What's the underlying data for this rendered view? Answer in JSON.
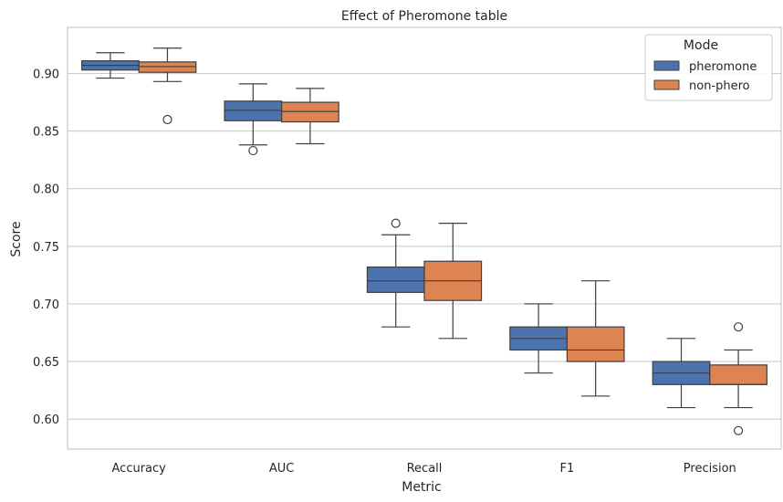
{
  "chart_data": {
    "type": "box",
    "title": "Effect of Pheromone table",
    "xlabel": "Metric",
    "ylabel": "Score",
    "categories": [
      "Accuracy",
      "AUC",
      "Recall",
      "F1",
      "Precision"
    ],
    "ylim": [
      0.574,
      0.94
    ],
    "yticks": [
      0.6,
      0.65,
      0.7,
      0.75,
      0.8,
      0.85,
      0.9
    ],
    "ytick_labels": [
      "0.60",
      "0.65",
      "0.70",
      "0.75",
      "0.80",
      "0.85",
      "0.90"
    ],
    "grid": true,
    "legend": {
      "title": "Mode",
      "position": "top-right"
    },
    "series": [
      {
        "name": "pheromone",
        "color": "#4c72b0",
        "boxes": [
          {
            "min": 0.896,
            "q1": 0.903,
            "median": 0.907,
            "q3": 0.911,
            "max": 0.918,
            "outliers": []
          },
          {
            "min": 0.838,
            "q1": 0.859,
            "median": 0.868,
            "q3": 0.876,
            "max": 0.891,
            "outliers": [
              0.833
            ]
          },
          {
            "min": 0.68,
            "q1": 0.71,
            "median": 0.72,
            "q3": 0.732,
            "max": 0.76,
            "outliers": [
              0.77
            ]
          },
          {
            "min": 0.64,
            "q1": 0.66,
            "median": 0.67,
            "q3": 0.68,
            "max": 0.7,
            "outliers": []
          },
          {
            "min": 0.61,
            "q1": 0.63,
            "median": 0.64,
            "q3": 0.65,
            "max": 0.67,
            "outliers": []
          }
        ]
      },
      {
        "name": "non-phero",
        "color": "#dd8452",
        "boxes": [
          {
            "min": 0.893,
            "q1": 0.901,
            "median": 0.906,
            "q3": 0.91,
            "max": 0.922,
            "outliers": [
              0.86
            ]
          },
          {
            "min": 0.839,
            "q1": 0.858,
            "median": 0.867,
            "q3": 0.875,
            "max": 0.887,
            "outliers": []
          },
          {
            "min": 0.67,
            "q1": 0.703,
            "median": 0.72,
            "q3": 0.737,
            "max": 0.77,
            "outliers": []
          },
          {
            "min": 0.62,
            "q1": 0.65,
            "median": 0.66,
            "q3": 0.68,
            "max": 0.72,
            "outliers": []
          },
          {
            "min": 0.61,
            "q1": 0.63,
            "median": 0.63,
            "q3": 0.647,
            "max": 0.66,
            "outliers": [
              0.68,
              0.59
            ]
          }
        ]
      }
    ]
  }
}
